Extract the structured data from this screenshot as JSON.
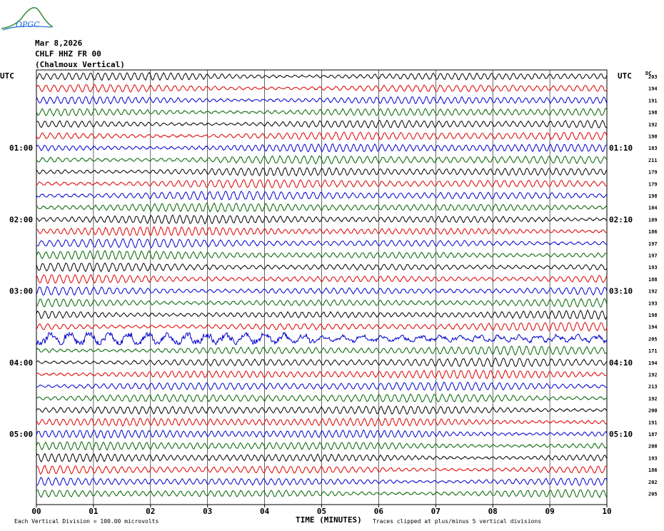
{
  "logo": {
    "text": "OPGC",
    "color": "#1a6fd6"
  },
  "header": {
    "date": "Mar 8,2026",
    "station": "CHLF HHZ FR 00",
    "site": "(Chalmoux Vertical)"
  },
  "left_axis_label": "UTC",
  "right_axis_label": "UTC",
  "dc_label": "DC",
  "left_hour_labels": [
    "01:00",
    "02:00",
    "03:00",
    "04:00",
    "05:00"
  ],
  "right_hour_labels": [
    "01:10",
    "02:10",
    "03:10",
    "04:10",
    "05:10"
  ],
  "x_tick_labels": [
    "00",
    "01",
    "02",
    "03",
    "04",
    "05",
    "06",
    "07",
    "08",
    "09",
    "10"
  ],
  "x_axis_title": "TIME (MINUTES)",
  "footer_left": "Each Vertical Division =  100.00 microvolts",
  "footer_right": "Traces clipped at plus/minus 5 vertical divisions",
  "chart_data": {
    "type": "line",
    "title": "CHLF HHZ FR 00 (Chalmoux Vertical)",
    "xlabel": "TIME (MINUTES)",
    "ylabel": "UTC",
    "xlim": [
      0,
      10
    ],
    "trace_minutes": 10,
    "rows": 36,
    "trace_colors": [
      "#000000",
      "#dd0000",
      "#0000cc",
      "#006400"
    ],
    "dc_offsets": [
      203,
      194,
      191,
      198,
      192,
      190,
      183,
      211,
      179,
      179,
      198,
      184,
      189,
      186,
      197,
      197,
      193,
      188,
      192,
      193,
      198,
      194,
      205,
      171,
      194,
      192,
      213,
      192,
      200,
      191,
      187,
      208,
      193,
      186,
      202,
      205
    ],
    "event_rows": [
      22
    ],
    "grid": true
  }
}
